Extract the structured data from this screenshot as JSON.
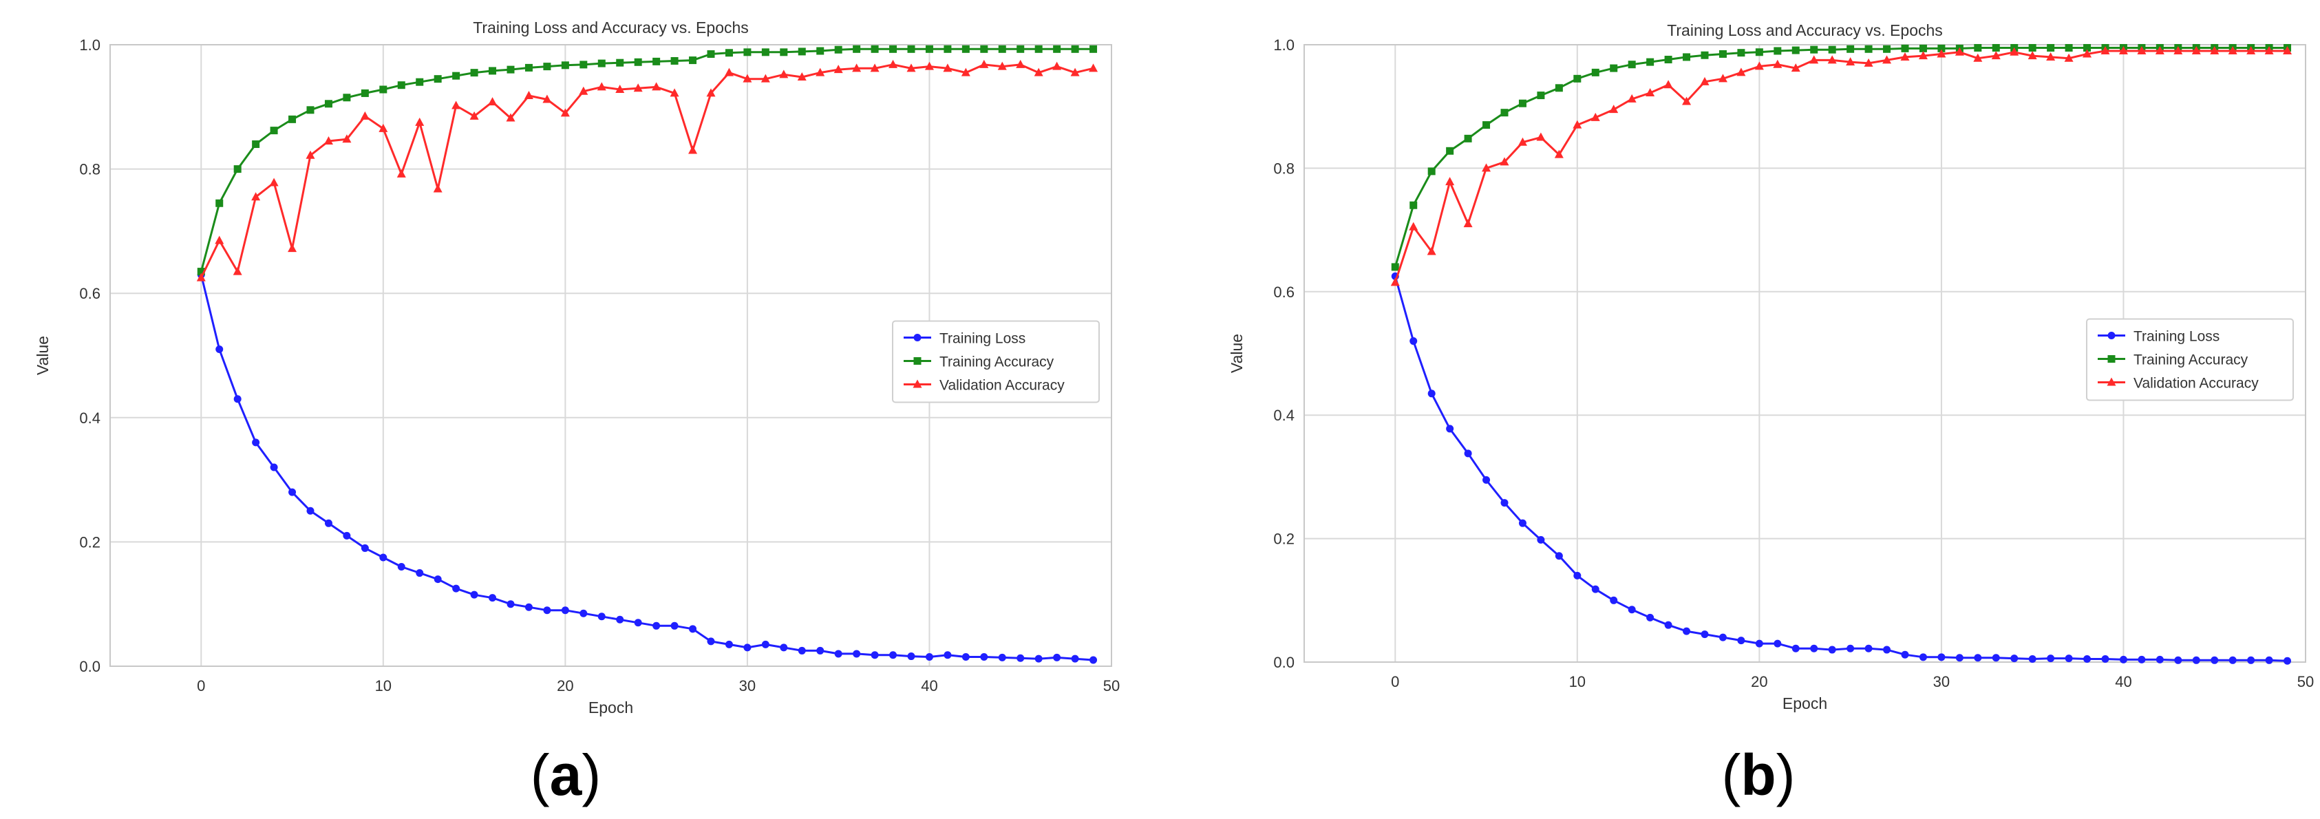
{
  "panels": [
    {
      "label": "(a)"
    },
    {
      "label": "(b)"
    }
  ],
  "colors": {
    "training_loss": "#1f1fff",
    "training_accuracy": "#1a8c1a",
    "validation_accuracy": "#ff2a2a",
    "grid": "#d9d9d9",
    "frame": "#c8c8c8",
    "text": "#333333"
  },
  "chart_data": [
    {
      "type": "line",
      "title": "Training Loss and Accuracy vs. Epochs",
      "xlabel": "Epoch",
      "ylabel": "Value",
      "xlim": [
        -5,
        50
      ],
      "ylim": [
        0,
        1
      ],
      "xticks": [
        0,
        10,
        20,
        30,
        40,
        50
      ],
      "yticks": [
        0.0,
        0.2,
        0.4,
        0.6,
        0.8,
        1.0
      ],
      "grid": true,
      "legend_position": "center-right",
      "x": [
        0,
        1,
        2,
        3,
        4,
        5,
        6,
        7,
        8,
        9,
        10,
        11,
        12,
        13,
        14,
        15,
        16,
        17,
        18,
        19,
        20,
        21,
        22,
        23,
        24,
        25,
        26,
        27,
        28,
        29,
        30,
        31,
        32,
        33,
        34,
        35,
        36,
        37,
        38,
        39,
        40,
        41,
        42,
        43,
        44,
        45,
        46,
        47,
        48,
        49
      ],
      "series": [
        {
          "name": "Training Loss",
          "color_key": "training_loss",
          "marker": "circle",
          "values": [
            0.63,
            0.51,
            0.43,
            0.36,
            0.32,
            0.28,
            0.25,
            0.23,
            0.21,
            0.19,
            0.175,
            0.16,
            0.15,
            0.14,
            0.125,
            0.115,
            0.11,
            0.1,
            0.095,
            0.09,
            0.09,
            0.085,
            0.08,
            0.075,
            0.07,
            0.065,
            0.065,
            0.06,
            0.04,
            0.035,
            0.03,
            0.035,
            0.03,
            0.025,
            0.025,
            0.02,
            0.02,
            0.018,
            0.018,
            0.016,
            0.015,
            0.018,
            0.015,
            0.015,
            0.014,
            0.013,
            0.012,
            0.014,
            0.012,
            0.01
          ]
        },
        {
          "name": "Training Accuracy",
          "color_key": "training_accuracy",
          "marker": "square",
          "values": [
            0.635,
            0.745,
            0.8,
            0.84,
            0.862,
            0.88,
            0.895,
            0.905,
            0.915,
            0.922,
            0.928,
            0.935,
            0.94,
            0.945,
            0.95,
            0.955,
            0.958,
            0.96,
            0.963,
            0.965,
            0.967,
            0.968,
            0.97,
            0.971,
            0.972,
            0.973,
            0.974,
            0.975,
            0.985,
            0.987,
            0.988,
            0.988,
            0.988,
            0.989,
            0.99,
            0.992,
            0.993,
            0.993,
            0.993,
            0.993,
            0.993,
            0.993,
            0.993,
            0.993,
            0.993,
            0.993,
            0.993,
            0.993,
            0.993,
            0.993
          ]
        },
        {
          "name": "Validation Accuracy",
          "color_key": "validation_accuracy",
          "marker": "triangle",
          "values": [
            0.625,
            0.685,
            0.635,
            0.755,
            0.778,
            0.672,
            0.822,
            0.845,
            0.848,
            0.885,
            0.865,
            0.792,
            0.875,
            0.768,
            0.902,
            0.885,
            0.908,
            0.882,
            0.918,
            0.912,
            0.89,
            0.925,
            0.932,
            0.928,
            0.93,
            0.932,
            0.922,
            0.83,
            0.922,
            0.955,
            0.945,
            0.945,
            0.952,
            0.948,
            0.955,
            0.96,
            0.962,
            0.962,
            0.968,
            0.962,
            0.965,
            0.962,
            0.955,
            0.968,
            0.965,
            0.968,
            0.955,
            0.965,
            0.955,
            0.962
          ]
        }
      ]
    },
    {
      "type": "line",
      "title": "Training Loss and Accuracy vs. Epochs",
      "xlabel": "Epoch",
      "ylabel": "Value",
      "xlim": [
        -5,
        50
      ],
      "ylim": [
        0,
        1
      ],
      "xticks": [
        0,
        10,
        20,
        30,
        40,
        50
      ],
      "yticks": [
        0.0,
        0.2,
        0.4,
        0.6,
        0.8,
        1.0
      ],
      "grid": true,
      "legend_position": "center-right",
      "x": [
        0,
        1,
        2,
        3,
        4,
        5,
        6,
        7,
        8,
        9,
        10,
        11,
        12,
        13,
        14,
        15,
        16,
        17,
        18,
        19,
        20,
        21,
        22,
        23,
        24,
        25,
        26,
        27,
        28,
        29,
        30,
        31,
        32,
        33,
        34,
        35,
        36,
        37,
        38,
        39,
        40,
        41,
        42,
        43,
        44,
        45,
        46,
        47,
        48,
        49
      ],
      "series": [
        {
          "name": "Training Loss",
          "color_key": "training_loss",
          "marker": "circle",
          "values": [
            0.625,
            0.52,
            0.435,
            0.378,
            0.338,
            0.295,
            0.258,
            0.225,
            0.198,
            0.172,
            0.14,
            0.118,
            0.1,
            0.085,
            0.072,
            0.06,
            0.05,
            0.045,
            0.04,
            0.035,
            0.03,
            0.03,
            0.022,
            0.022,
            0.02,
            0.022,
            0.022,
            0.02,
            0.012,
            0.008,
            0.008,
            0.007,
            0.007,
            0.007,
            0.006,
            0.005,
            0.006,
            0.006,
            0.005,
            0.005,
            0.004,
            0.004,
            0.004,
            0.003,
            0.003,
            0.003,
            0.003,
            0.003,
            0.003,
            0.002
          ]
        },
        {
          "name": "Training Accuracy",
          "color_key": "training_accuracy",
          "marker": "square",
          "values": [
            0.64,
            0.74,
            0.795,
            0.828,
            0.848,
            0.87,
            0.89,
            0.905,
            0.918,
            0.93,
            0.945,
            0.955,
            0.962,
            0.968,
            0.972,
            0.976,
            0.98,
            0.983,
            0.985,
            0.987,
            0.988,
            0.99,
            0.991,
            0.992,
            0.992,
            0.993,
            0.993,
            0.993,
            0.994,
            0.994,
            0.994,
            0.994,
            0.995,
            0.995,
            0.995,
            0.995,
            0.995,
            0.995,
            0.995,
            0.995,
            0.995,
            0.995,
            0.995,
            0.995,
            0.995,
            0.995,
            0.995,
            0.995,
            0.995,
            0.995
          ]
        },
        {
          "name": "Validation Accuracy",
          "color_key": "validation_accuracy",
          "marker": "triangle",
          "values": [
            0.615,
            0.705,
            0.665,
            0.778,
            0.71,
            0.8,
            0.81,
            0.842,
            0.85,
            0.822,
            0.87,
            0.882,
            0.895,
            0.912,
            0.922,
            0.935,
            0.908,
            0.94,
            0.945,
            0.955,
            0.965,
            0.968,
            0.962,
            0.975,
            0.975,
            0.972,
            0.97,
            0.975,
            0.98,
            0.982,
            0.985,
            0.988,
            0.978,
            0.982,
            0.988,
            0.982,
            0.98,
            0.978,
            0.985,
            0.99,
            0.99,
            0.99,
            0.99,
            0.99,
            0.99,
            0.99,
            0.99,
            0.99,
            0.99,
            0.99
          ]
        }
      ]
    }
  ]
}
